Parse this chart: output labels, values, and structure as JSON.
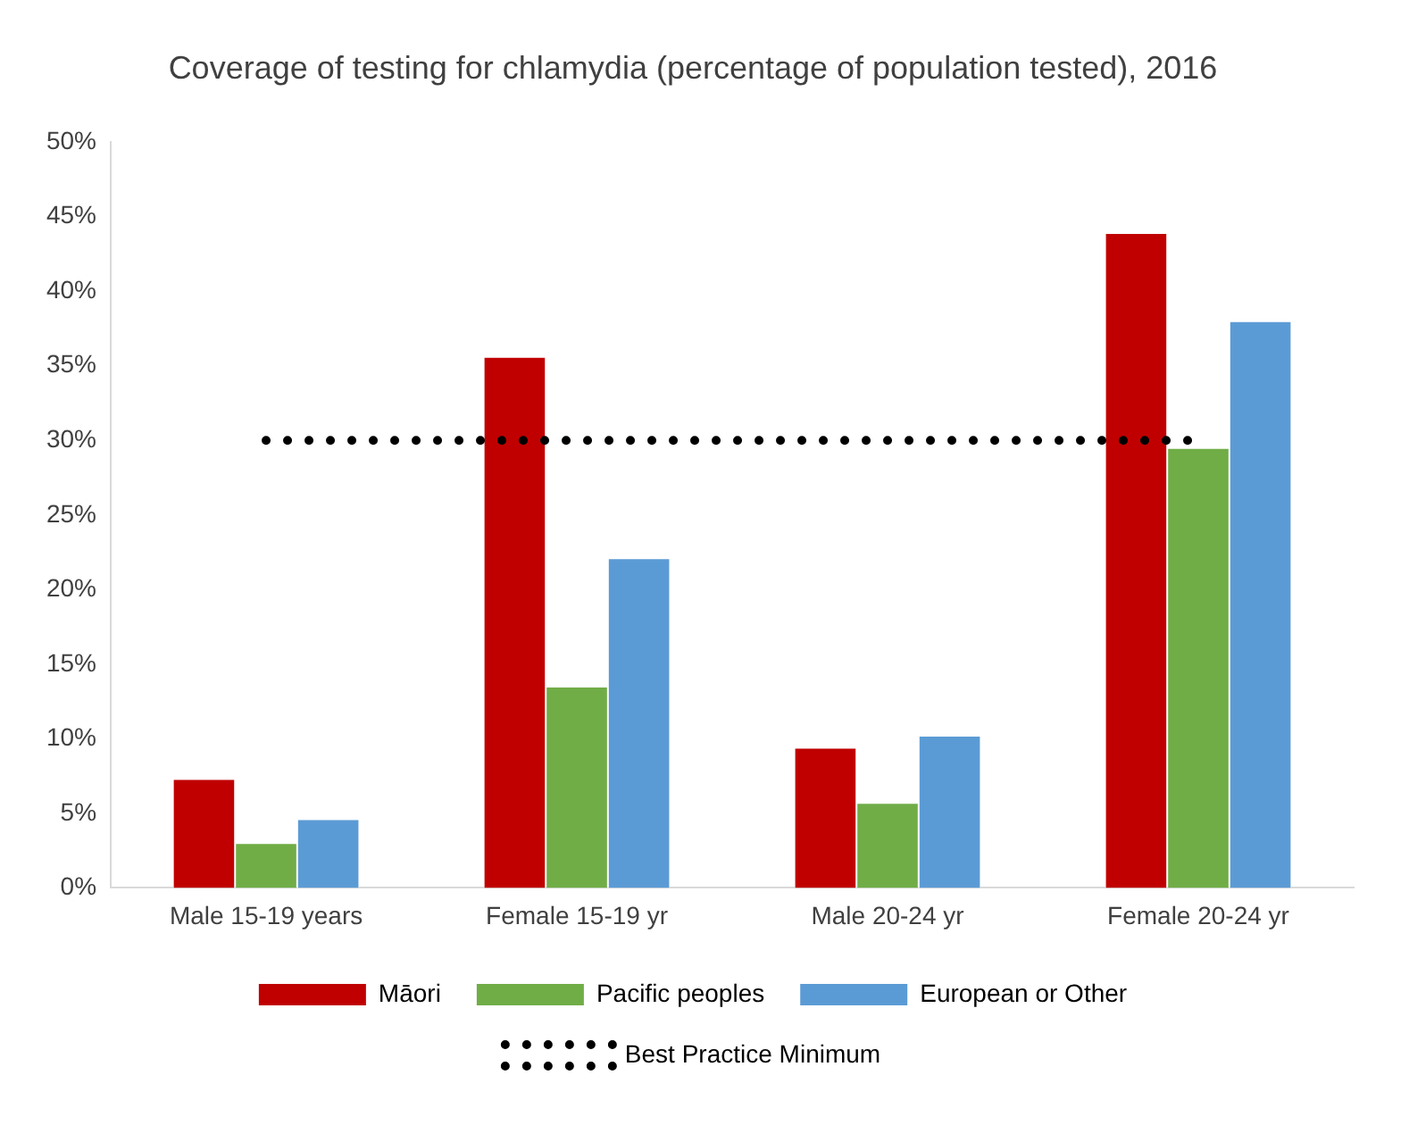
{
  "chart_data": {
    "type": "bar",
    "title": "Coverage of testing for chlamydia (percentage of population tested), 2016",
    "categories": [
      "Male 15-19 years",
      "Female 15-19 yr",
      "Male 20-24 yr",
      "Female 20-24 yr"
    ],
    "series": [
      {
        "name": "Māori",
        "color": "#c00000",
        "values": [
          7.3,
          35.6,
          9.4,
          43.9
        ]
      },
      {
        "name": "Pacific peoples",
        "color": "#70ad47",
        "values": [
          3.0,
          13.5,
          5.7,
          29.5
        ]
      },
      {
        "name": "European or Other",
        "color": "#5b9bd5",
        "values": [
          4.6,
          22.1,
          10.2,
          38.0
        ]
      },
      {
        "name": "Best Practice Minimum",
        "type": "line",
        "color": "#000000",
        "line_style": "dotted",
        "marker": "none",
        "values": [
          30,
          30,
          30,
          30
        ]
      }
    ],
    "ylim": [
      0,
      50
    ],
    "yticks": [
      {
        "value": 0,
        "label": "0%"
      },
      {
        "value": 5,
        "label": "5%"
      },
      {
        "value": 10,
        "label": "10%"
      },
      {
        "value": 15,
        "label": "15%"
      },
      {
        "value": 20,
        "label": "20%"
      },
      {
        "value": 25,
        "label": "25%"
      },
      {
        "value": 30,
        "label": "30%"
      },
      {
        "value": 35,
        "label": "35%"
      },
      {
        "value": 40,
        "label": "40%"
      },
      {
        "value": 45,
        "label": "45%"
      },
      {
        "value": 50,
        "label": "50%"
      }
    ],
    "grid": false,
    "legend": "bottom"
  }
}
